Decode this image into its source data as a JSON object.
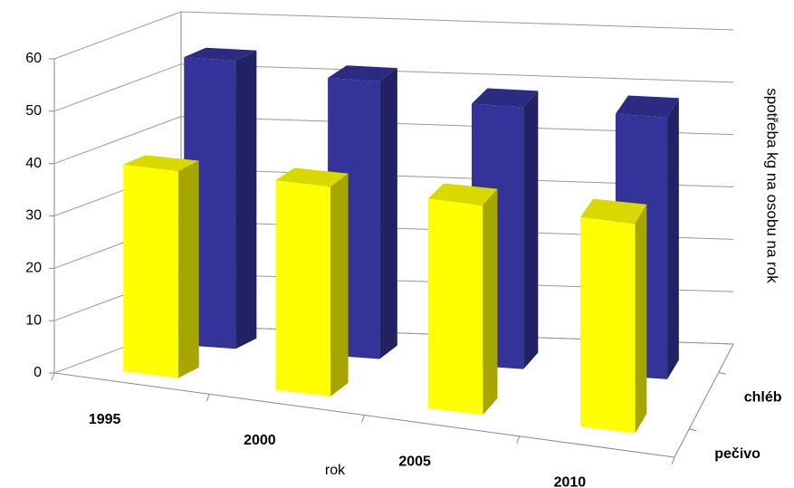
{
  "chart_data": {
    "type": "bar3d",
    "x_label": "rok",
    "y_label": "spotřeba kg na osobu na rok",
    "categories": [
      "1995",
      "2000",
      "2005",
      "2010"
    ],
    "series": [
      {
        "name": "pečivo",
        "color": "#ffff00",
        "values": [
          39.5,
          40,
          40,
          40
        ]
      },
      {
        "name": "chléb",
        "color": "#333399",
        "values": [
          55,
          53,
          50,
          50
        ]
      }
    ],
    "ylim": [
      0,
      60
    ],
    "yticks": [
      0,
      10,
      20,
      30,
      40,
      50,
      60
    ],
    "grid": true
  }
}
